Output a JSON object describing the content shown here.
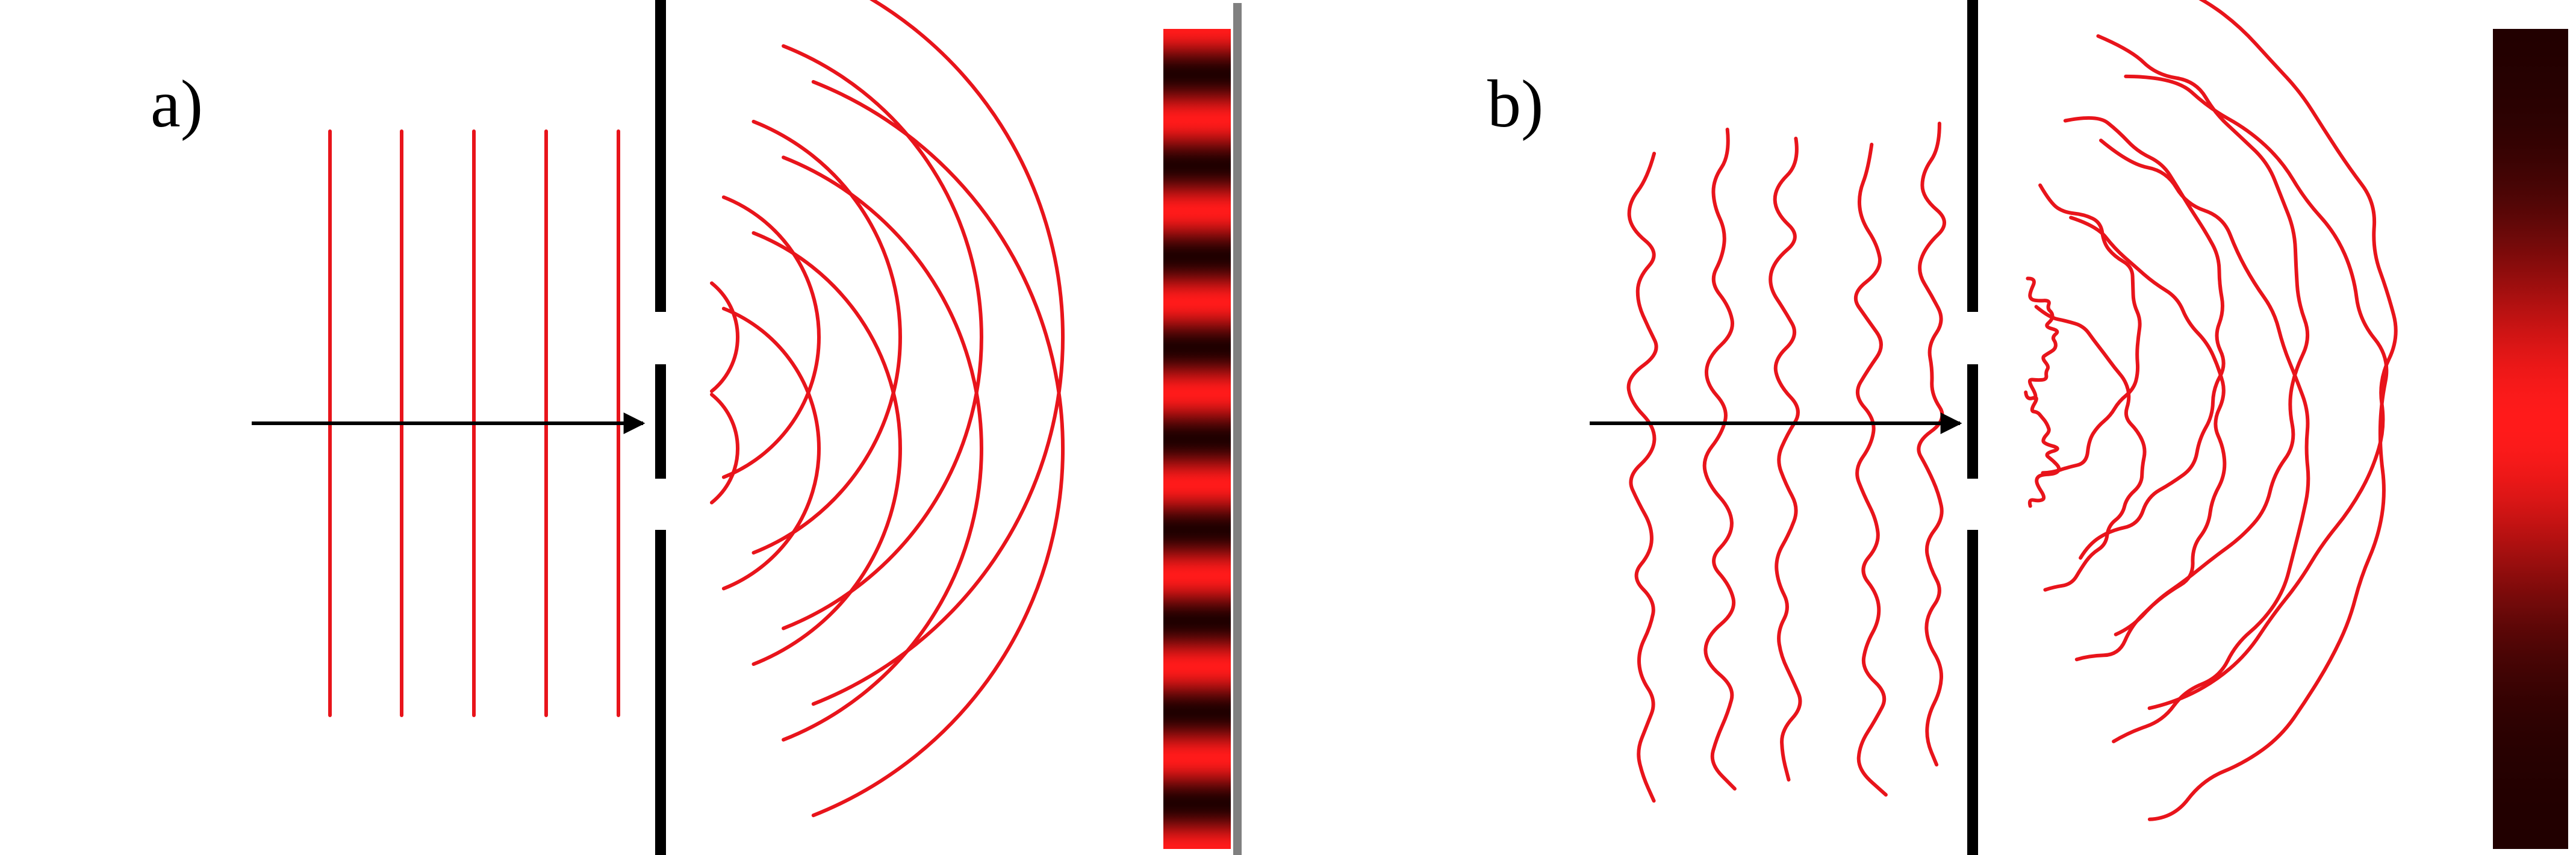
{
  "panels": [
    {
      "label": "a)",
      "type": "coherent"
    },
    {
      "label": "b)",
      "type": "incoherent"
    }
  ],
  "colors": {
    "wave": "#e8141b",
    "barrier": "#000000",
    "arrow": "#000000",
    "screen_bright": "#ff1a1a",
    "screen_dark": "#200000",
    "screen_edge": "#808080"
  },
  "icons": [
    "slit-barrier",
    "arrow-right-icon",
    "detection-screen"
  ]
}
